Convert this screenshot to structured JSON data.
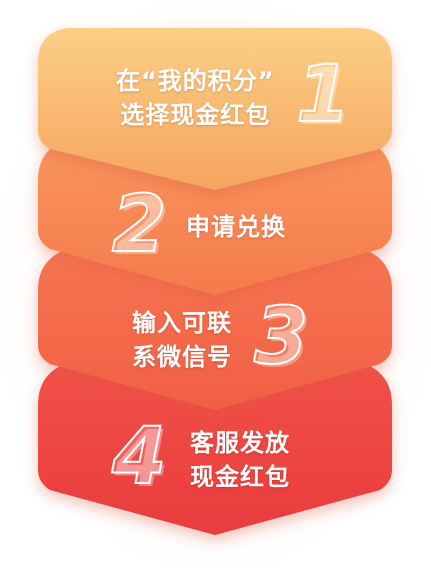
{
  "colors": {
    "step1": [
      "#fbcf86",
      "#f6a45e"
    ],
    "step2": [
      "#fa9c62",
      "#f57a4c"
    ],
    "step3": [
      "#f87a55",
      "#f15f44"
    ],
    "step4": [
      "#f4564a",
      "#e93b3e"
    ]
  },
  "steps": [
    {
      "number": "1",
      "lines": [
        "在“我的积分”",
        "选择现金红包"
      ]
    },
    {
      "number": "2",
      "lines": [
        "申请兑换"
      ]
    },
    {
      "number": "3",
      "lines": [
        "输入可联",
        "系微信号"
      ]
    },
    {
      "number": "4",
      "lines": [
        "客服发放",
        "现金红包"
      ]
    }
  ]
}
